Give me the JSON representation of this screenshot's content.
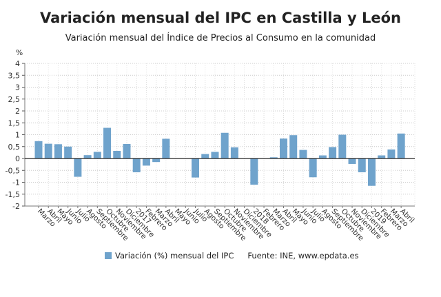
{
  "chart_data": {
    "type": "bar",
    "title": "Variación mensual del IPC en Castilla y León",
    "subtitle": "Variación mensual del Índice de Precios al Consumo en la comunidad",
    "ylabel": "%",
    "ylim": [
      -2,
      4
    ],
    "yticks": [
      "4",
      "3,5",
      "3",
      "2,5",
      "2",
      "1,5",
      "1",
      "0,5",
      "0",
      "-0,5",
      "-1",
      "-1,5",
      "-2"
    ],
    "grid": true,
    "legend_position": "bottom",
    "categories": [
      "Marzo",
      "Abril",
      "Mayo",
      "Junio",
      "Julio",
      "Agosto",
      "Septiembre",
      "Octubre",
      "Noviembre",
      "Diciembre",
      "2017",
      "Febrero",
      "Marzo",
      "Abril",
      "Mayo",
      "Junio",
      "Julio",
      "Agosto",
      "Septiembre",
      "Octubre",
      "Noviembre",
      "Diciembre",
      "2018",
      "Febrero",
      "Marzo",
      "Abril",
      "Mayo",
      "Junio",
      "Julio",
      "Agosto",
      "Septiembre",
      "Octubre",
      "Noviembre",
      "Diciembre",
      "2019",
      "Febrero",
      "Marzo",
      "Abril"
    ],
    "series": [
      {
        "name": "Variación (%) mensual del IPC",
        "color": "#6fa3cc",
        "values": [
          0.73,
          0.62,
          0.6,
          0.5,
          -0.77,
          0.14,
          0.28,
          1.29,
          0.32,
          0.61,
          -0.58,
          -0.3,
          -0.15,
          0.83,
          0,
          0,
          -0.8,
          0.19,
          0.28,
          1.08,
          0.47,
          0,
          -1.1,
          0,
          0.05,
          0.84,
          0.98,
          0.36,
          -0.79,
          0.13,
          0.48,
          1.0,
          -0.23,
          -0.58,
          -1.15,
          0.13,
          0.38,
          1.05
        ]
      }
    ],
    "source": "Fuente: INE, www.epdata.es"
  }
}
